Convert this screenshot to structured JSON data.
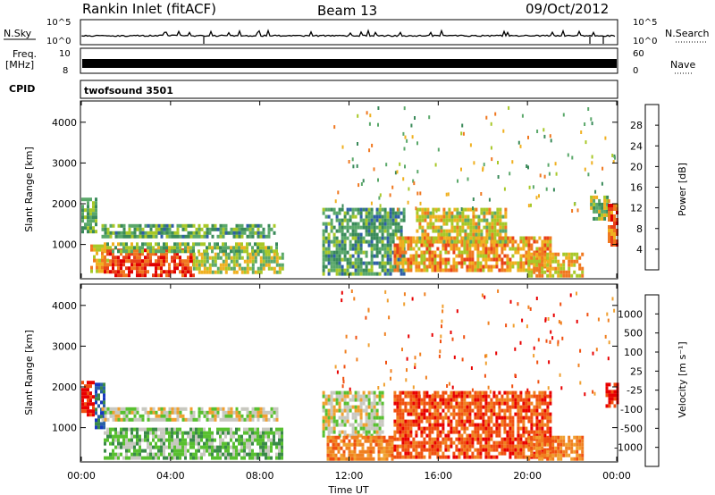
{
  "header": {
    "station": "Rankin Inlet (fitACF)",
    "beam": "Beam 13",
    "date": "09/Oct/2012"
  },
  "panels": {
    "nsky": {
      "label": "N.Sky",
      "left_ticks": [
        "10^5",
        "10^0"
      ],
      "right_label": "N.Search",
      "right_ticks": [
        "10^5",
        "10^0"
      ]
    },
    "freq": {
      "label": "Freq.",
      "unit": "[MHz]",
      "left_ticks": [
        "10",
        "8"
      ],
      "right_label": "Nave",
      "right_ticks": [
        "60",
        "0"
      ]
    },
    "cpid": {
      "label": "CPID",
      "text": "twofsound 3501"
    }
  },
  "colors": {
    "power_scale": [
      "#1a20d8",
      "#2f5fa8",
      "#3a8a5a",
      "#5aa86a",
      "#a8c828",
      "#f0b020",
      "#f07820",
      "#e84018",
      "#e00000"
    ],
    "velocity_scale": [
      "#1838c0",
      "#2860a8",
      "#3a8a48",
      "#58c030",
      "#c8c8c0",
      "#f0a030",
      "#f08020",
      "#f05010",
      "#e80000"
    ]
  },
  "chart_data": [
    {
      "type": "heatmap",
      "name": "power",
      "ylabel": "Slant Range [km]",
      "yticks": [
        "1000",
        "2000",
        "3000",
        "4000"
      ],
      "ylim": [
        180,
        4500
      ],
      "xlim": [
        0,
        24
      ],
      "xticks": [
        "00:00",
        "04:00",
        "08:00",
        "12:00",
        "16:00",
        "20:00",
        "00:00"
      ],
      "xticks_values": [
        0,
        4,
        8,
        12,
        16,
        20,
        24
      ],
      "colorbar": {
        "label": "Power [dB]",
        "ticks": [
          "4",
          "8",
          "12",
          "16",
          "20",
          "24",
          "28"
        ],
        "tick_values": [
          4,
          8,
          12,
          16,
          20,
          24,
          28
        ],
        "range": [
          0,
          32
        ]
      },
      "regions": [
        {
          "t": [
            0.0,
            0.7
          ],
          "r": [
            1350,
            2150
          ],
          "v": 12
        },
        {
          "t": [
            0.4,
            1.2
          ],
          "r": [
            300,
            1000
          ],
          "v": 20
        },
        {
          "t": [
            1.0,
            5.0
          ],
          "r": [
            250,
            900
          ],
          "v": 28
        },
        {
          "t": [
            0.9,
            8.8
          ],
          "r": [
            1150,
            1500
          ],
          "v": 11
        },
        {
          "t": [
            1.0,
            8.8
          ],
          "r": [
            850,
            1050
          ],
          "v": 14
        },
        {
          "t": [
            5.0,
            9.0
          ],
          "r": [
            300,
            800
          ],
          "v": 16
        },
        {
          "t": [
            10.8,
            14.5
          ],
          "r": [
            300,
            1900
          ],
          "v": 10
        },
        {
          "t": [
            14.0,
            21.0
          ],
          "r": [
            400,
            1200
          ],
          "v": 22
        },
        {
          "t": [
            15.0,
            19.0
          ],
          "r": [
            1100,
            1900
          ],
          "v": 18
        },
        {
          "t": [
            20.0,
            22.5
          ],
          "r": [
            250,
            800
          ],
          "v": 20
        },
        {
          "t": [
            22.8,
            23.6
          ],
          "r": [
            1600,
            2200
          ],
          "v": 14
        },
        {
          "t": [
            23.6,
            24.0
          ],
          "r": [
            1000,
            2000
          ],
          "v": 26
        }
      ]
    },
    {
      "type": "heatmap",
      "name": "velocity",
      "ylabel": "Slant Range [km]",
      "yticks": [
        "1000",
        "2000",
        "3000",
        "4000"
      ],
      "ylim": [
        180,
        4500
      ],
      "xlim": [
        0,
        24
      ],
      "xticks": [
        "00:00",
        "04:00",
        "08:00",
        "12:00",
        "16:00",
        "20:00",
        "00:00"
      ],
      "xticks_values": [
        0,
        4,
        8,
        12,
        16,
        20,
        24
      ],
      "xlabel": "Time UT",
      "colorbar": {
        "label": "Velocity [m s⁻¹]",
        "ticks": [
          "1000",
          "500",
          "100",
          "25",
          "-25",
          "-100",
          "-500",
          "-1000"
        ]
      },
      "regions": [
        {
          "t": [
            0.0,
            0.6
          ],
          "r": [
            1350,
            2150
          ],
          "v": 8
        },
        {
          "t": [
            0.6,
            1.0
          ],
          "r": [
            1000,
            2100
          ],
          "v": 1
        },
        {
          "t": [
            0.9,
            8.8
          ],
          "r": [
            1150,
            1500
          ],
          "v": 4
        },
        {
          "t": [
            1.0,
            9.0
          ],
          "r": [
            250,
            1000
          ],
          "v": 3
        },
        {
          "t": [
            10.8,
            13.5
          ],
          "r": [
            800,
            1900
          ],
          "v": 4
        },
        {
          "t": [
            11.0,
            14.0
          ],
          "r": [
            250,
            800
          ],
          "v": 6
        },
        {
          "t": [
            14.0,
            21.0
          ],
          "r": [
            300,
            1900
          ],
          "v": 7
        },
        {
          "t": [
            20.0,
            22.5
          ],
          "r": [
            250,
            800
          ],
          "v": 6
        },
        {
          "t": [
            23.5,
            24.0
          ],
          "r": [
            1500,
            2100
          ],
          "v": 8
        }
      ]
    }
  ]
}
